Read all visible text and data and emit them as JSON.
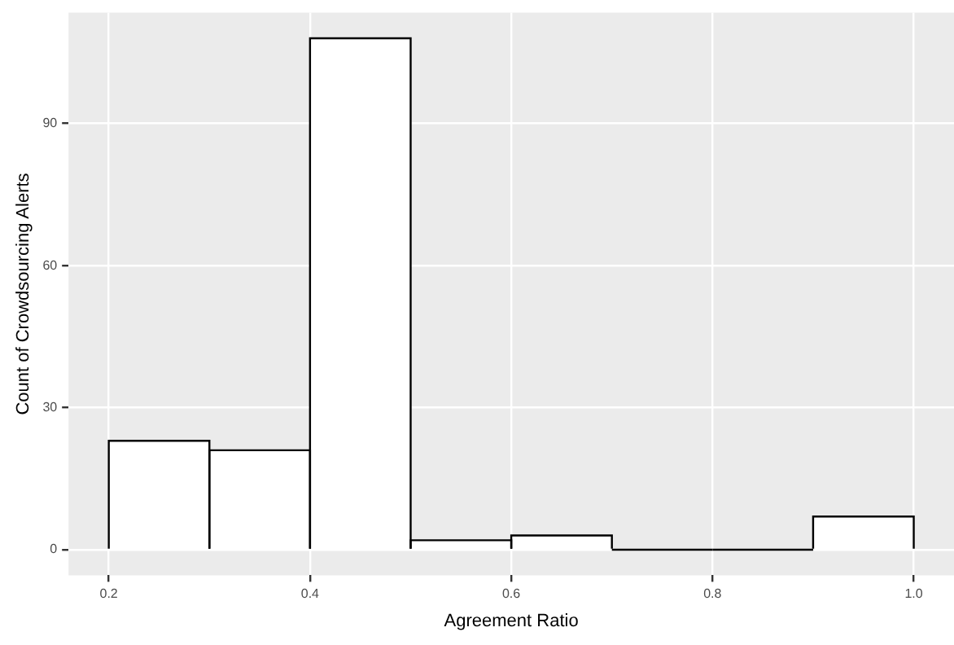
{
  "chart_data": {
    "type": "histogram",
    "xlabel": "Agreement Ratio",
    "ylabel": "Count of Crowdsourcing Alerts",
    "bins": [
      0.2,
      0.3,
      0.4,
      0.5,
      0.6,
      0.7,
      0.8,
      0.9,
      1.0
    ],
    "values": [
      23,
      21,
      108,
      2,
      3,
      0,
      0,
      7
    ],
    "color": "#ffffff",
    "xlim": [
      0.16,
      1.04
    ],
    "xticks": [
      0.2,
      0.4,
      0.6,
      0.8,
      {
        "value": 1,
        "label": "1.0"
      }
    ],
    "ylim": [
      -5.4,
      113.4
    ],
    "yticks": [
      0,
      30,
      60,
      90
    ],
    "grid": true,
    "legend": false
  }
}
